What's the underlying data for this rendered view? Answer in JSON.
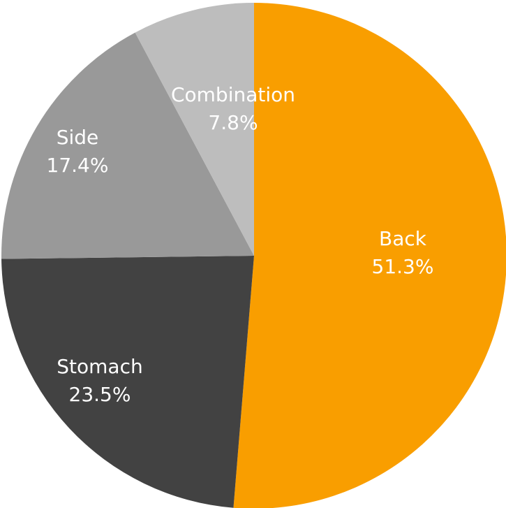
{
  "chart_data": {
    "type": "pie",
    "start_angle_deg": 0,
    "direction": "clockwise",
    "slices": [
      {
        "label": "Back",
        "value": 51.3,
        "value_label": "51.3%",
        "color": "#F99E00"
      },
      {
        "label": "Stomach",
        "value": 23.5,
        "value_label": "23.5%",
        "color": "#424242"
      },
      {
        "label": "Side",
        "value": 17.4,
        "value_label": "17.4%",
        "color": "#999999"
      },
      {
        "label": "Combination",
        "value": 7.8,
        "value_label": "7.8%",
        "color": "#BDBDBD"
      }
    ],
    "legend": "none"
  }
}
